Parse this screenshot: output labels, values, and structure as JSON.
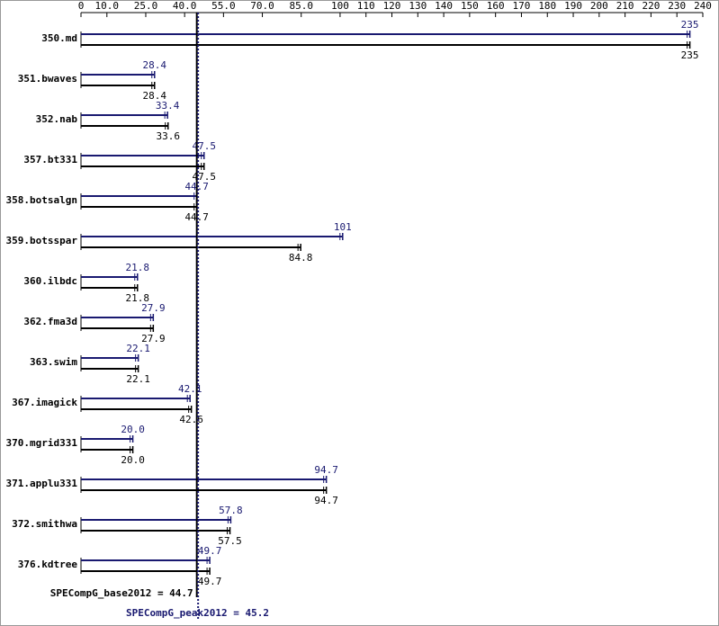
{
  "chart_data": {
    "type": "bar",
    "categories": [
      "350.md",
      "351.bwaves",
      "352.nab",
      "357.bt331",
      "358.botsalgn",
      "359.botsspar",
      "360.ilbdc",
      "362.fma3d",
      "363.swim",
      "367.imagick",
      "370.mgrid331",
      "371.applu331",
      "372.smithwa",
      "376.kdtree"
    ],
    "series": [
      {
        "name": "SPECompG_peak2012",
        "color": "#191970",
        "values": [
          235,
          28.4,
          33.4,
          47.5,
          44.7,
          101,
          21.8,
          27.9,
          22.1,
          42.1,
          20.0,
          94.7,
          57.8,
          49.7
        ],
        "value_labels": [
          "235",
          "28.4",
          "33.4",
          "47.5",
          "44.7",
          "101",
          "21.8",
          "27.9",
          "22.1",
          "42.1",
          "20.0",
          "94.7",
          "57.8",
          "49.7"
        ]
      },
      {
        "name": "SPECompG_base2012",
        "color": "#000000",
        "values": [
          235,
          28.4,
          33.6,
          47.5,
          44.7,
          84.8,
          21.8,
          27.9,
          22.1,
          42.6,
          20.0,
          94.7,
          57.5,
          49.7
        ],
        "value_labels": [
          "235",
          "28.4",
          "33.6",
          "47.5",
          "44.7",
          "84.8",
          "21.8",
          "27.9",
          "22.1",
          "42.6",
          "20.0",
          "94.7",
          "57.5",
          "49.7"
        ]
      }
    ],
    "xlim": [
      0,
      240
    ],
    "xticks": [
      0,
      {
        "value": 10,
        "label": "10.0"
      },
      {
        "value": 25,
        "label": "25.0"
      },
      {
        "value": 40,
        "label": "40.0"
      },
      {
        "value": 55,
        "label": "55.0"
      },
      {
        "value": 70,
        "label": "70.0"
      },
      {
        "value": 85,
        "label": "85.0"
      },
      100,
      110,
      120,
      130,
      140,
      150,
      160,
      170,
      180,
      190,
      200,
      210,
      220,
      230,
      240
    ],
    "reference_lines": [
      {
        "label": "SPECompG_base2012 = 44.7",
        "value": 44.7,
        "color": "#000000",
        "style": "solid"
      },
      {
        "label": "SPECompG_peak2012 = 45.2",
        "value": 45.2,
        "color": "#191970",
        "style": "dotted"
      }
    ]
  }
}
